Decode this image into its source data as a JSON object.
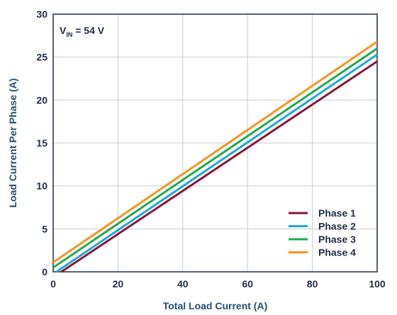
{
  "chart_data": {
    "type": "line",
    "xlabel": "Total Load Current (A)",
    "ylabel": "Load Current Per Phase (A)",
    "xlim": [
      0,
      100
    ],
    "ylim": [
      0,
      30
    ],
    "xticks": [
      0,
      20,
      40,
      60,
      80,
      100
    ],
    "yticks": [
      0,
      5,
      10,
      15,
      20,
      25,
      30
    ],
    "grid": true,
    "legend_position": "bottom-right",
    "annotation": {
      "main": "V",
      "subscript": "IN",
      "suffix": " = 54 V"
    },
    "series": [
      {
        "name": "Phase 1",
        "color": "#8b1538",
        "x": [
          2.5,
          100
        ],
        "y": [
          0,
          24.5
        ]
      },
      {
        "name": "Phase 2",
        "color": "#1fa8d8",
        "x": [
          1.0,
          100
        ],
        "y": [
          0,
          25.3
        ]
      },
      {
        "name": "Phase 3",
        "color": "#22a94f",
        "x": [
          0,
          100
        ],
        "y": [
          0.5,
          26.0
        ]
      },
      {
        "name": "Phase 4",
        "color": "#f7941d",
        "x": [
          0,
          100
        ],
        "y": [
          1.1,
          26.8
        ]
      }
    ]
  }
}
